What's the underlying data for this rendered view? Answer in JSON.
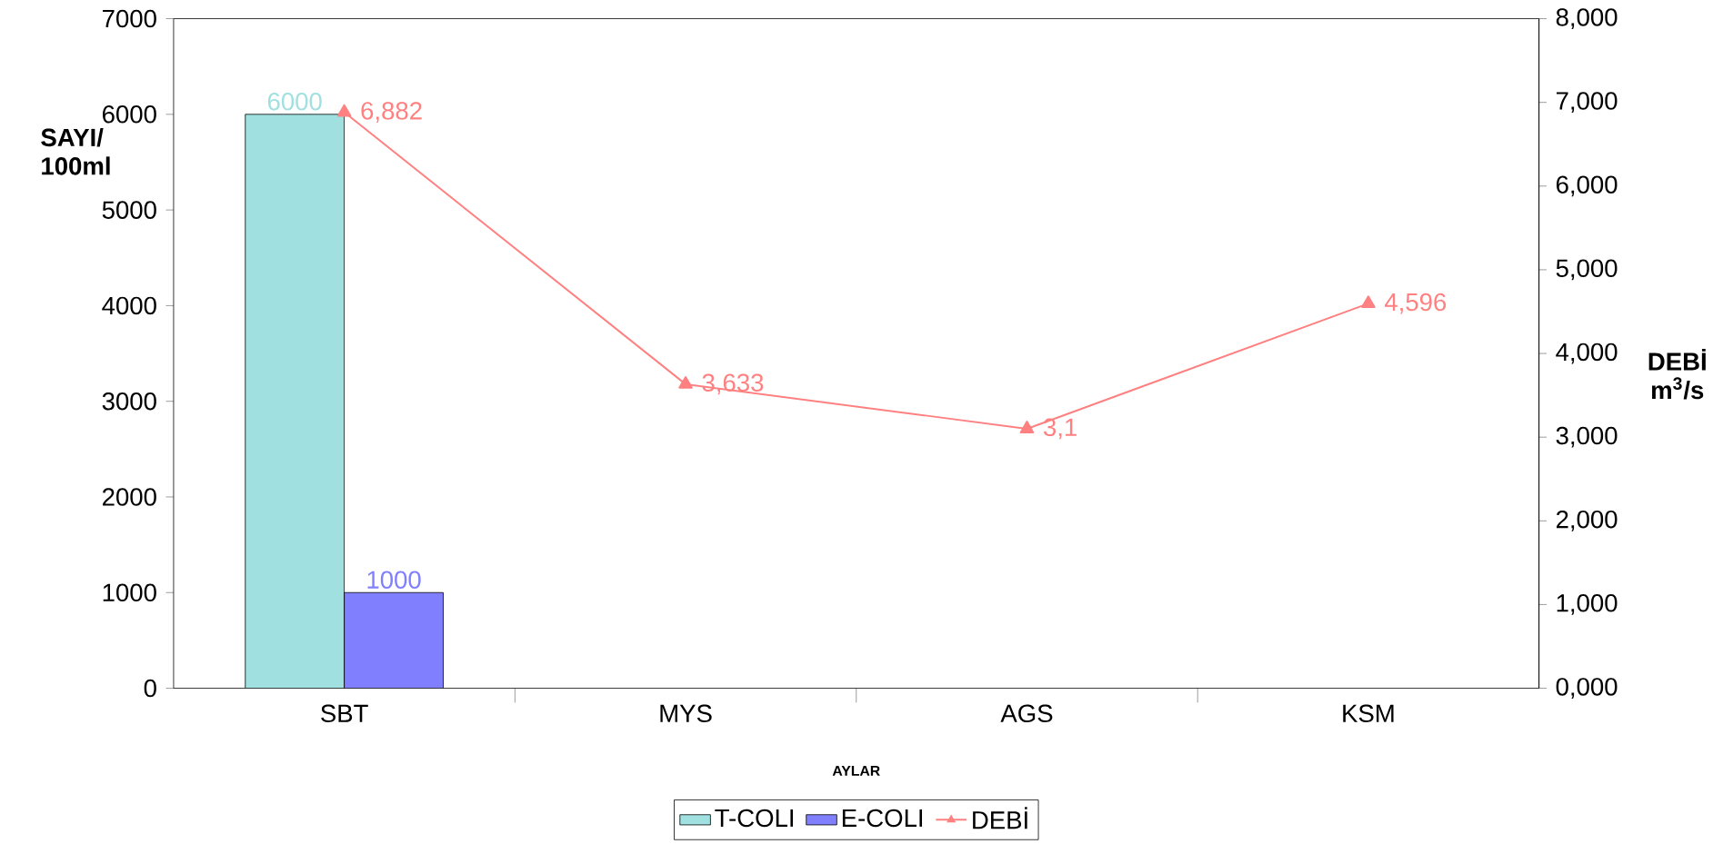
{
  "chart_data": {
    "type": "bar",
    "xlabel": "AYLAR",
    "ylabel": "SAYI/ 100ml",
    "y2label": "DEBİ m$^{3}$/s",
    "categories": [
      "SBT",
      "MYS",
      "AGS",
      "KSM"
    ],
    "series": [
      {
        "name": "T-COLI",
        "color": "#a0e0e0",
        "values": [
          6000,
          null,
          null,
          null
        ],
        "value_labels": [
          "6000",
          null,
          null,
          null
        ]
      },
      {
        "name": "E-COLI",
        "color": "#8080ff",
        "values": [
          1000,
          null,
          null,
          null
        ],
        "value_labels": [
          "1000",
          null,
          null,
          null
        ]
      },
      {
        "name": "DEBİ",
        "type": "line",
        "axis": "y2",
        "color": "#ff8080",
        "values": [
          6.882,
          3.633,
          3.1,
          4.596
        ],
        "value_labels": [
          "6,882",
          "3,633",
          "3,1",
          "4,596"
        ]
      }
    ],
    "ylim": [
      0,
      7000
    ],
    "yticks": [
      0,
      1000,
      2000,
      3000,
      4000,
      5000,
      6000,
      7000
    ],
    "y2lim": [
      0,
      8
    ],
    "y2ticks": [
      {
        "value": 0,
        "label": "0,000"
      },
      {
        "value": 1,
        "label": "1,000"
      },
      {
        "value": 2,
        "label": "2,000"
      },
      {
        "value": 3,
        "label": "3,000"
      },
      {
        "value": 4,
        "label": "4,000"
      },
      {
        "value": 5,
        "label": "5,000"
      },
      {
        "value": 6,
        "label": "6,000"
      },
      {
        "value": 7,
        "label": "7,000"
      },
      {
        "value": 8,
        "label": "8,000"
      }
    ],
    "marker": "triangle",
    "legend": "bottom"
  }
}
